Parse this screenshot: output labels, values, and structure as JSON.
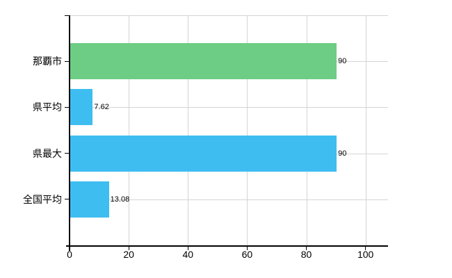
{
  "chart_data": {
    "type": "bar",
    "orientation": "horizontal",
    "title": "",
    "categories": [
      "那覇市",
      "県平均",
      "県最大",
      "全国平均"
    ],
    "values": [
      90,
      7.62,
      90,
      13.08
    ],
    "value_labels": [
      "90",
      "7.62",
      "90",
      "13.08"
    ],
    "bar_colors": [
      "#6ecd84",
      "#3ebdf0",
      "#3ebdf0",
      "#3ebdf0"
    ],
    "x_ticks": [
      0,
      20,
      40,
      60,
      80,
      100
    ],
    "x_tick_labels": [
      "0",
      "20",
      "40",
      "60",
      "80",
      "100"
    ],
    "xlim": [
      0,
      107.6
    ],
    "grid": true,
    "legend": "none",
    "axis_color": "#000000",
    "grid_color": "#d4d4d4",
    "text_color": "#000000",
    "background": "#ffffff"
  }
}
